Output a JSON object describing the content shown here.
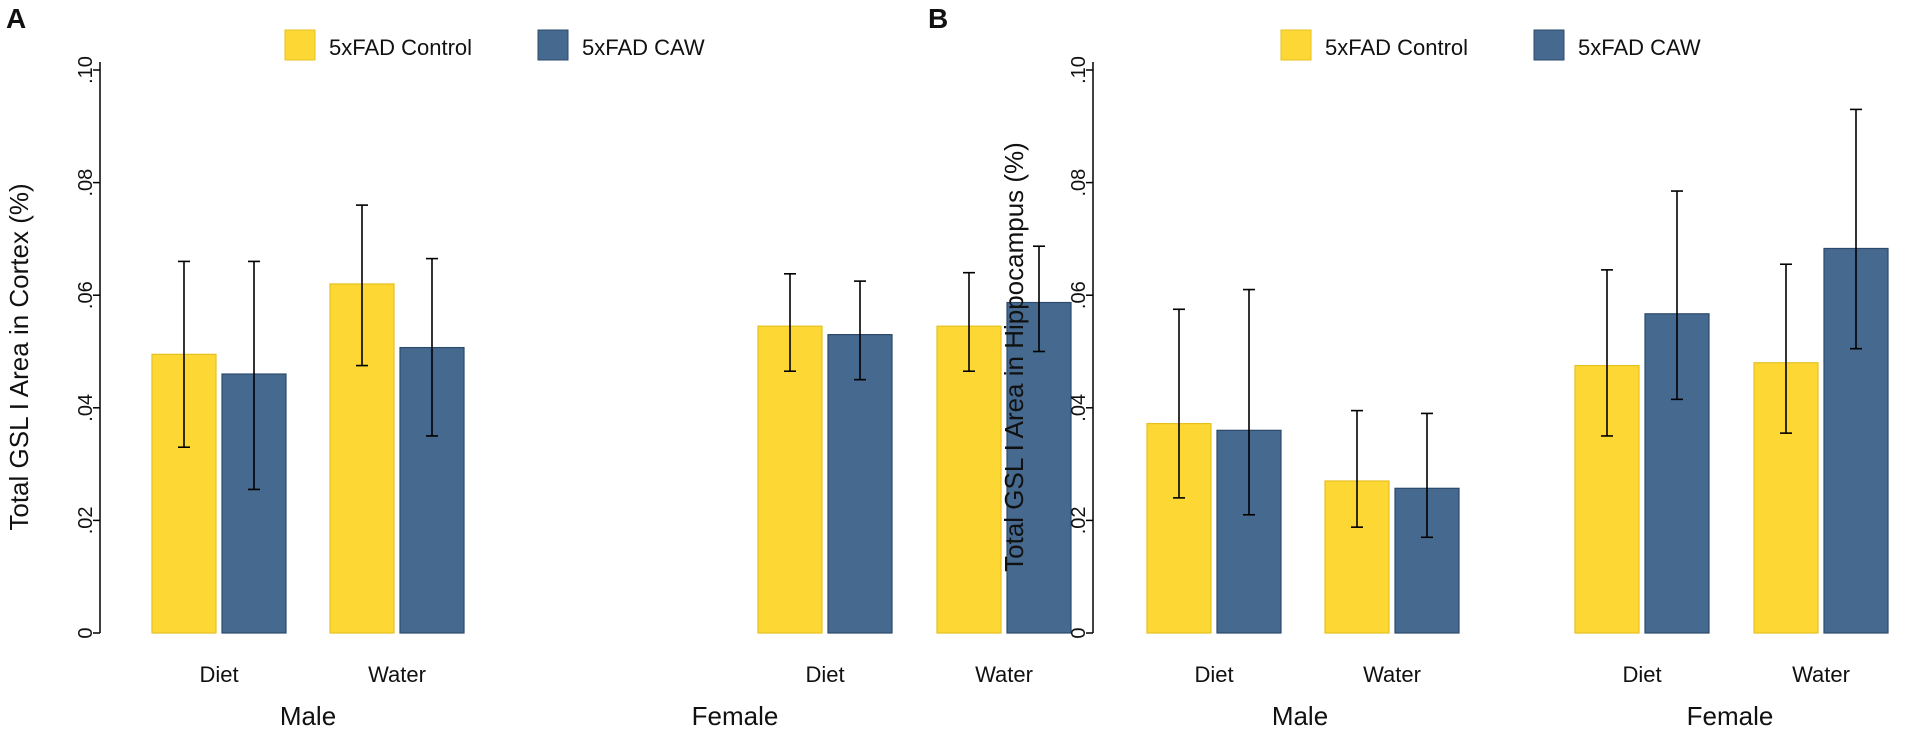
{
  "colors": {
    "control": "#FDD835",
    "control_stroke": "#E6C01F",
    "caw": "#46698F",
    "caw_stroke": "#2C4A6B"
  },
  "chart_data": [
    {
      "panel": "A",
      "type": "bar",
      "ylabel": "Total GSL I Area in Cortex (%)",
      "ylim": [
        0,
        0.1
      ],
      "yticks": [
        0,
        0.02,
        0.04,
        0.06,
        0.08,
        0.1
      ],
      "ytick_labels": [
        "0",
        ".02",
        ".04",
        ".06",
        ".08",
        ".10"
      ],
      "legend": [
        "5xFAD Control",
        "5xFAD CAW"
      ],
      "groups": [
        "Male",
        "Female"
      ],
      "categories": [
        "Diet",
        "Water",
        "Diet",
        "Water"
      ],
      "series": [
        {
          "name": "5xFAD Control",
          "values": [
            0.0495,
            0.062,
            0.0545,
            0.0545
          ],
          "err_low": [
            0.033,
            0.0475,
            0.0465,
            0.0465
          ],
          "err_high": [
            0.066,
            0.076,
            0.0638,
            0.064
          ]
        },
        {
          "name": "5xFAD CAW",
          "values": [
            0.046,
            0.0507,
            0.053,
            0.0587
          ],
          "err_low": [
            0.0255,
            0.035,
            0.045,
            0.05
          ],
          "err_high": [
            0.066,
            0.0665,
            0.0625,
            0.0687
          ]
        }
      ]
    },
    {
      "panel": "B",
      "type": "bar",
      "ylabel": "Total GSL I Area in Hippocampus (%)",
      "ylim": [
        0,
        0.1
      ],
      "yticks": [
        0,
        0.02,
        0.04,
        0.06,
        0.08,
        0.1
      ],
      "ytick_labels": [
        "0",
        ".02",
        ".04",
        ".06",
        ".08",
        ".10"
      ],
      "legend": [
        "5xFAD Control",
        "5xFAD CAW"
      ],
      "groups": [
        "Male",
        "Female"
      ],
      "categories": [
        "Diet",
        "Water",
        "Diet",
        "Water"
      ],
      "series": [
        {
          "name": "5xFAD Control",
          "values": [
            0.0372,
            0.027,
            0.0475,
            0.048
          ],
          "err_low": [
            0.024,
            0.0188,
            0.035,
            0.0355
          ],
          "err_high": [
            0.0575,
            0.0395,
            0.0645,
            0.0655
          ]
        },
        {
          "name": "5xFAD CAW",
          "values": [
            0.036,
            0.0257,
            0.0567,
            0.0683
          ],
          "err_low": [
            0.021,
            0.017,
            0.0415,
            0.0505
          ],
          "err_high": [
            0.061,
            0.039,
            0.0785,
            0.093
          ]
        }
      ]
    }
  ]
}
